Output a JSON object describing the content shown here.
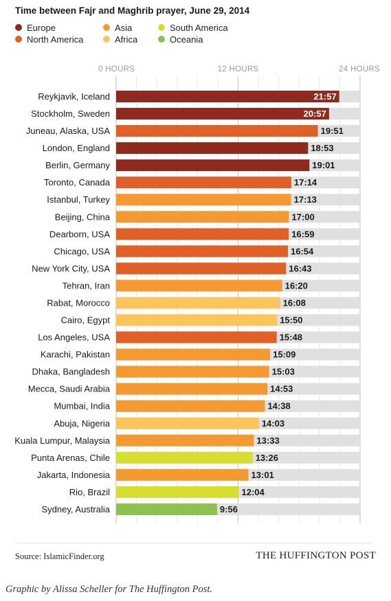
{
  "chart_data": {
    "type": "bar",
    "orientation": "horizontal",
    "title": "Time between Fajr and Maghrib prayer, June 29, 2014",
    "x_ticks": [
      "0 HOURS",
      "12 HOURS",
      "24 HOURS"
    ],
    "x_range_hours": [
      0,
      24
    ],
    "grid": true,
    "legend": [
      {
        "name": "Europe",
        "color": "#8f2a1f"
      },
      {
        "name": "Asia",
        "color": "#f59a32"
      },
      {
        "name": "South America",
        "color": "#d6df2f"
      },
      {
        "name": "North America",
        "color": "#e06027"
      },
      {
        "name": "Africa",
        "color": "#fbc55c"
      },
      {
        "name": "Oceania",
        "color": "#8cc24f"
      }
    ],
    "background_bar_color": "#e0e0e0",
    "rows": [
      {
        "city": "Reykjavik, Iceland",
        "region": "Europe",
        "value": "21:57"
      },
      {
        "city": "Stockholm, Sweden",
        "region": "Europe",
        "value": "20:57"
      },
      {
        "city": "Juneau, Alaska, USA",
        "region": "North America",
        "value": "19:51"
      },
      {
        "city": "London, England",
        "region": "Europe",
        "value": "18:53"
      },
      {
        "city": "Berlin, Germany",
        "region": "Europe",
        "value": "19:01"
      },
      {
        "city": "Toronto, Canada",
        "region": "North America",
        "value": "17:14"
      },
      {
        "city": "Istanbul, Turkey",
        "region": "Asia",
        "value": "17:13"
      },
      {
        "city": "Beijing, China",
        "region": "Asia",
        "value": "17:00"
      },
      {
        "city": "Dearborn, USA",
        "region": "North America",
        "value": "16:59"
      },
      {
        "city": "Chicago, USA",
        "region": "North America",
        "value": "16:54"
      },
      {
        "city": "New York City, USA",
        "region": "North America",
        "value": "16:43"
      },
      {
        "city": "Tehran, Iran",
        "region": "Asia",
        "value": "16:20"
      },
      {
        "city": "Rabat, Morocco",
        "region": "Africa",
        "value": "16:08"
      },
      {
        "city": "Cairo, Egypt",
        "region": "Africa",
        "value": "15:50"
      },
      {
        "city": "Los Angeles, USA",
        "region": "North America",
        "value": "15:48"
      },
      {
        "city": "Karachi, Pakistan",
        "region": "Asia",
        "value": "15:09"
      },
      {
        "city": "Dhaka, Bangladesh",
        "region": "Asia",
        "value": "15:03"
      },
      {
        "city": "Mecca, Saudi Arabia",
        "region": "Asia",
        "value": "14:53"
      },
      {
        "city": "Mumbai, India",
        "region": "Asia",
        "value": "14:38"
      },
      {
        "city": "Abuja, Nigeria",
        "region": "Africa",
        "value": "14:03"
      },
      {
        "city": "Kuala Lumpur, Malaysia",
        "region": "Asia",
        "value": "13:33"
      },
      {
        "city": "Punta Arenas, Chile",
        "region": "South America",
        "value": "13:26"
      },
      {
        "city": "Jakarta, Indonesia",
        "region": "Asia",
        "value": "13:01"
      },
      {
        "city": "Rio, Brazil",
        "region": "South America",
        "value": "12:04"
      },
      {
        "city": "Sydney, Australia",
        "region": "Oceania",
        "value": "9:56"
      }
    ]
  },
  "footer": {
    "source": "Source: IslamicFinder.org",
    "brand": "THE HUFFINGTON POST"
  },
  "credit": "Graphic by Alissa Scheller for The Huffington Post."
}
